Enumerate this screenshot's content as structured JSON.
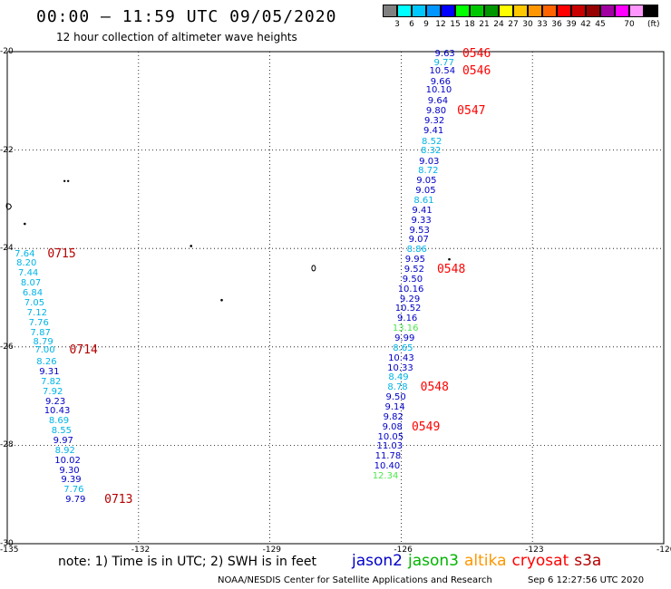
{
  "title": "00:00 – 11:59 UTC 09/05/2020",
  "subtitle": "12 hour collection of altimeter wave heights",
  "colorbar": {
    "colors": [
      "#808080",
      "#00ffff",
      "#00c8ff",
      "#0096ff",
      "#0000ff",
      "#00ff00",
      "#00c800",
      "#009600",
      "#ffff00",
      "#ffc800",
      "#ff9600",
      "#ff6400",
      "#ff0000",
      "#c80000",
      "#960000",
      "#a000a0",
      "#ff00ff",
      "#ff96ff",
      "#000000"
    ],
    "labels": [
      "3",
      "6",
      "9",
      "12",
      "15",
      "18",
      "21",
      "24",
      "27",
      "30",
      "33",
      "36",
      "39",
      "42",
      "45",
      "70"
    ],
    "unit": "(ft)"
  },
  "axes": {
    "lon_ticks": [
      "-135",
      "-132",
      "-129",
      "-126",
      "-123",
      "-120"
    ],
    "lat_ticks": [
      "-20",
      "-22",
      "-24",
      "-26",
      "-28",
      "-30"
    ]
  },
  "sensor_colors": {
    "jason2": "#0000c8",
    "jason3": "#00b400",
    "altika": "#ff9600",
    "cryosat": "#ff0000",
    "s3a": "#b40000",
    "cyan": "#00b4e6",
    "lime": "#50e650"
  },
  "observations": [
    {
      "v": "9.63",
      "c": "#0000c8",
      "lon": -125.0,
      "lat": -20.03
    },
    {
      "v": "9.77",
      "c": "#00b4e6",
      "lon": -125.02,
      "lat": -20.23
    },
    {
      "v": "10.54",
      "c": "#0000c8",
      "lon": -125.06,
      "lat": -20.38
    },
    {
      "v": "9.66",
      "c": "#0000c8",
      "lon": -125.1,
      "lat": -20.6
    },
    {
      "v": "10.10",
      "c": "#0000c8",
      "lon": -125.14,
      "lat": -20.78
    },
    {
      "v": "9.64",
      "c": "#0000c8",
      "lon": -125.16,
      "lat": -21.0
    },
    {
      "v": "9.80",
      "c": "#0000c8",
      "lon": -125.2,
      "lat": -21.2
    },
    {
      "v": "9.32",
      "c": "#0000c8",
      "lon": -125.24,
      "lat": -21.4
    },
    {
      "v": "9.41",
      "c": "#0000c8",
      "lon": -125.26,
      "lat": -21.6
    },
    {
      "v": "8.52",
      "c": "#00b4e6",
      "lon": -125.3,
      "lat": -21.82
    },
    {
      "v": "8.32",
      "c": "#00b4e6",
      "lon": -125.32,
      "lat": -22.0
    },
    {
      "v": "9.03",
      "c": "#0000c8",
      "lon": -125.36,
      "lat": -22.22
    },
    {
      "v": "8.72",
      "c": "#00b4e6",
      "lon": -125.38,
      "lat": -22.42
    },
    {
      "v": "9.05",
      "c": "#0000c8",
      "lon": -125.42,
      "lat": -22.62
    },
    {
      "v": "9.05",
      "c": "#0000c8",
      "lon": -125.44,
      "lat": -22.82
    },
    {
      "v": "8.61",
      "c": "#00b4e6",
      "lon": -125.48,
      "lat": -23.02
    },
    {
      "v": "9.41",
      "c": "#0000c8",
      "lon": -125.52,
      "lat": -23.22
    },
    {
      "v": "9.33",
      "c": "#0000c8",
      "lon": -125.54,
      "lat": -23.42
    },
    {
      "v": "9.53",
      "c": "#0000c8",
      "lon": -125.58,
      "lat": -23.62
    },
    {
      "v": "9.07",
      "c": "#0000c8",
      "lon": -125.6,
      "lat": -23.82
    },
    {
      "v": "8.86",
      "c": "#00b4e6",
      "lon": -125.64,
      "lat": -24.02
    },
    {
      "v": "9.95",
      "c": "#0000c8",
      "lon": -125.68,
      "lat": -24.22
    },
    {
      "v": "9.52",
      "c": "#0000c8",
      "lon": -125.7,
      "lat": -24.42
    },
    {
      "v": "9.50",
      "c": "#0000c8",
      "lon": -125.74,
      "lat": -24.62
    },
    {
      "v": "10.16",
      "c": "#0000c8",
      "lon": -125.78,
      "lat": -24.82
    },
    {
      "v": "9.29",
      "c": "#0000c8",
      "lon": -125.8,
      "lat": -25.02
    },
    {
      "v": "10.52",
      "c": "#0000c8",
      "lon": -125.84,
      "lat": -25.22
    },
    {
      "v": "9.16",
      "c": "#0000c8",
      "lon": -125.86,
      "lat": -25.42
    },
    {
      "v": "13.16",
      "c": "#50e650",
      "lon": -125.9,
      "lat": -25.62
    },
    {
      "v": "9.99",
      "c": "#0000c8",
      "lon": -125.92,
      "lat": -25.82
    },
    {
      "v": "8.65",
      "c": "#00b4e6",
      "lon": -125.96,
      "lat": -26.02
    },
    {
      "v": "10.43",
      "c": "#0000c8",
      "lon": -126.0,
      "lat": -26.22
    },
    {
      "v": "10.33",
      "c": "#0000c8",
      "lon": -126.02,
      "lat": -26.42
    },
    {
      "v": "8.49",
      "c": "#00b4e6",
      "lon": -126.06,
      "lat": -26.62
    },
    {
      "v": "8.78",
      "c": "#00b4e6",
      "lon": -126.08,
      "lat": -26.82
    },
    {
      "v": "9.50",
      "c": "#0000c8",
      "lon": -126.12,
      "lat": -27.02
    },
    {
      "v": "9.14",
      "c": "#0000c8",
      "lon": -126.14,
      "lat": -27.22
    },
    {
      "v": "9.82",
      "c": "#0000c8",
      "lon": -126.18,
      "lat": -27.42
    },
    {
      "v": "9.08",
      "c": "#0000c8",
      "lon": -126.2,
      "lat": -27.62
    },
    {
      "v": "10.05",
      "c": "#0000c8",
      "lon": -126.24,
      "lat": -27.82
    },
    {
      "v": "11.03",
      "c": "#0000c8",
      "lon": -126.26,
      "lat": -28.02
    },
    {
      "v": "11.78",
      "c": "#0000c8",
      "lon": -126.3,
      "lat": -28.22
    },
    {
      "v": "10.40",
      "c": "#0000c8",
      "lon": -126.32,
      "lat": -28.42
    },
    {
      "v": "12.34",
      "c": "#50e650",
      "lon": -126.36,
      "lat": -28.62
    },
    {
      "v": "7.64",
      "c": "#00b4e6",
      "lon": -134.6,
      "lat": -24.1
    },
    {
      "v": "8.20",
      "c": "#00b4e6",
      "lon": -134.56,
      "lat": -24.3
    },
    {
      "v": "7.44",
      "c": "#00b4e6",
      "lon": -134.52,
      "lat": -24.5
    },
    {
      "v": "8.07",
      "c": "#00b4e6",
      "lon": -134.46,
      "lat": -24.7
    },
    {
      "v": "6.84",
      "c": "#00b4e6",
      "lon": -134.42,
      "lat": -24.9
    },
    {
      "v": "7.05",
      "c": "#00b4e6",
      "lon": -134.38,
      "lat": -25.1
    },
    {
      "v": "7.12",
      "c": "#00b4e6",
      "lon": -134.32,
      "lat": -25.3
    },
    {
      "v": "7.76",
      "c": "#00b4e6",
      "lon": -134.28,
      "lat": -25.5
    },
    {
      "v": "7.87",
      "c": "#00b4e6",
      "lon": -134.24,
      "lat": -25.7
    },
    {
      "v": "8.79",
      "c": "#00b4e6",
      "lon": -134.18,
      "lat": -25.9
    },
    {
      "v": "7.00",
      "c": "#00b4e6",
      "lon": -134.14,
      "lat": -26.05
    },
    {
      "v": "8.26",
      "c": "#00b4e6",
      "lon": -134.1,
      "lat": -26.3
    },
    {
      "v": "9.31",
      "c": "#0000c8",
      "lon": -134.04,
      "lat": -26.5
    },
    {
      "v": "7.82",
      "c": "#00b4e6",
      "lon": -134.0,
      "lat": -26.7
    },
    {
      "v": "7.92",
      "c": "#00b4e6",
      "lon": -133.96,
      "lat": -26.9
    },
    {
      "v": "9.23",
      "c": "#0000c8",
      "lon": -133.9,
      "lat": -27.1
    },
    {
      "v": "10.43",
      "c": "#0000c8",
      "lon": -133.86,
      "lat": -27.3
    },
    {
      "v": "8.69",
      "c": "#00b4e6",
      "lon": -133.82,
      "lat": -27.5
    },
    {
      "v": "8.55",
      "c": "#00b4e6",
      "lon": -133.76,
      "lat": -27.7
    },
    {
      "v": "9.97",
      "c": "#0000c8",
      "lon": -133.72,
      "lat": -27.9
    },
    {
      "v": "8.92",
      "c": "#00b4e6",
      "lon": -133.68,
      "lat": -28.1
    },
    {
      "v": "10.02",
      "c": "#0000c8",
      "lon": -133.62,
      "lat": -28.3
    },
    {
      "v": "9.30",
      "c": "#0000c8",
      "lon": -133.58,
      "lat": -28.5
    },
    {
      "v": "9.39",
      "c": "#0000c8",
      "lon": -133.54,
      "lat": -28.7
    },
    {
      "v": "7.76",
      "c": "#00b4e6",
      "lon": -133.48,
      "lat": -28.9
    },
    {
      "v": "9.79",
      "c": "#0000c8",
      "lon": -133.44,
      "lat": -29.1
    }
  ],
  "time_labels": [
    {
      "t": "0546",
      "c": "#ff0000",
      "lon": -124.6,
      "lat": -20.03
    },
    {
      "t": "0546",
      "c": "#ff0000",
      "lon": -124.6,
      "lat": -20.38
    },
    {
      "t": "0547",
      "c": "#ff0000",
      "lon": -124.72,
      "lat": -21.2
    },
    {
      "t": "0548",
      "c": "#ff0000",
      "lon": -125.18,
      "lat": -24.42
    },
    {
      "t": "0548",
      "c": "#ff0000",
      "lon": -125.56,
      "lat": -26.82
    },
    {
      "t": "0549",
      "c": "#ff0000",
      "lon": -125.76,
      "lat": -27.62
    },
    {
      "t": "0715",
      "c": "#b40000",
      "lon": -134.08,
      "lat": -24.1
    },
    {
      "t": "0714",
      "c": "#b40000",
      "lon": -133.58,
      "lat": -26.05
    },
    {
      "t": "0713",
      "c": "#b40000",
      "lon": -132.78,
      "lat": -29.1
    }
  ],
  "islands": [
    {
      "lon": -134.95,
      "lat": -23.15,
      "type": "blob"
    },
    {
      "lon": -134.6,
      "lat": -23.5,
      "type": "dot"
    },
    {
      "lon": -133.65,
      "lat": -22.63,
      "type": "pair"
    },
    {
      "lon": -130.8,
      "lat": -23.95,
      "type": "dot"
    },
    {
      "lon": -130.1,
      "lat": -25.05,
      "type": "dot"
    },
    {
      "lon": -128.0,
      "lat": -24.4,
      "type": "ring"
    },
    {
      "lon": -124.9,
      "lat": -24.22,
      "type": "dot"
    }
  ],
  "note": "note:  1) Time is in UTC;  2) SWH is in feet",
  "legend": {
    "jason2": "jason2",
    "jason3": "jason3",
    "altika": "altika",
    "cryosat": "cryosat",
    "s3a": "s3a"
  },
  "credit": "NOAA/NESDIS Center for Satellite Applications and Research",
  "timestamp": "Sep  6 12:27:56 UTC 2020"
}
